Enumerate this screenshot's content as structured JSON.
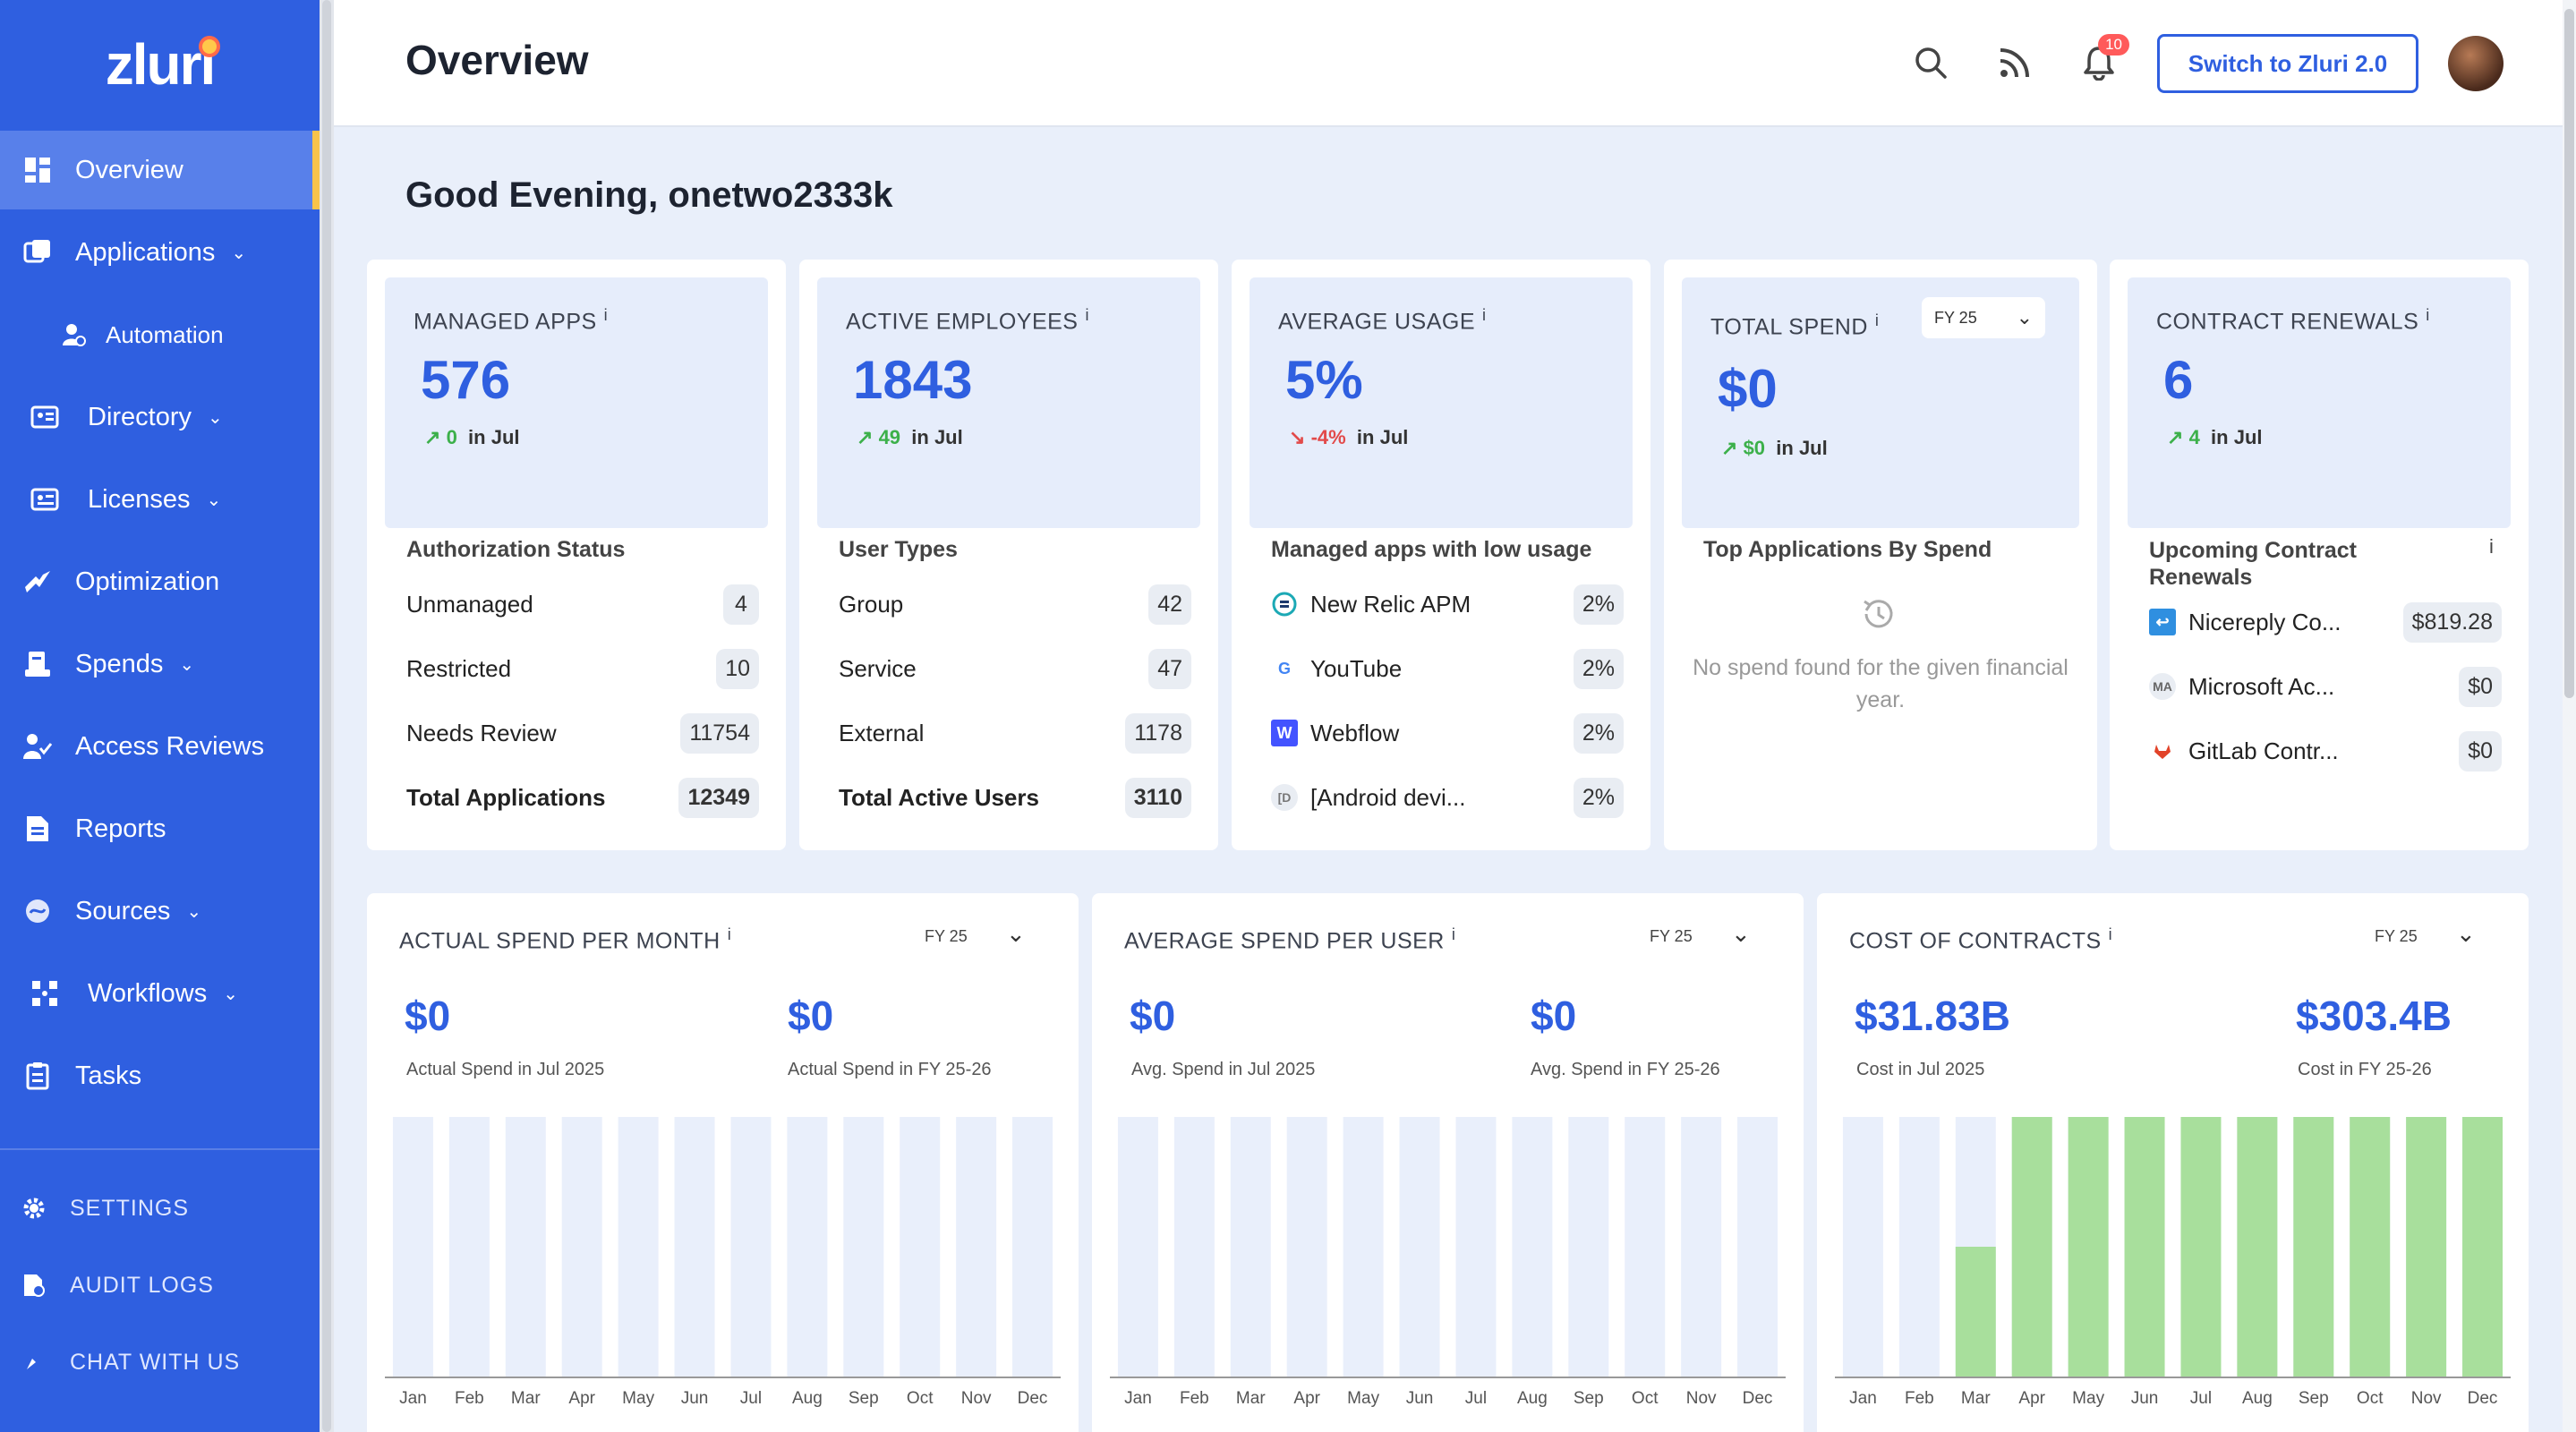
{
  "app": {
    "logo": "zluri",
    "page_title": "Overview",
    "greeting": "Good Evening, onetwo2333k"
  },
  "header": {
    "notification_count": "10",
    "switch_label": "Switch to Zluri 2.0"
  },
  "sidebar": {
    "items": [
      {
        "label": "Overview",
        "icon": "grid-icon",
        "active": true
      },
      {
        "label": "Applications",
        "icon": "applications-icon",
        "chevron": true
      },
      {
        "label": "Automation",
        "icon": "automation-icon",
        "sub": true
      },
      {
        "label": "Directory",
        "icon": "directory-icon",
        "chevron": true
      },
      {
        "label": "Licenses",
        "icon": "licenses-icon",
        "chevron": true
      },
      {
        "label": "Optimization",
        "icon": "optimization-icon"
      },
      {
        "label": "Spends",
        "icon": "spends-icon",
        "chevron": true
      },
      {
        "label": "Access Reviews",
        "icon": "access-reviews-icon"
      },
      {
        "label": "Reports",
        "icon": "reports-icon"
      },
      {
        "label": "Sources",
        "icon": "sources-icon",
        "chevron": true
      },
      {
        "label": "Workflows",
        "icon": "workflows-icon",
        "chevron": true
      },
      {
        "label": "Tasks",
        "icon": "tasks-icon"
      }
    ],
    "bottom": [
      {
        "label": "SETTINGS",
        "icon": "gear-icon"
      },
      {
        "label": "AUDIT LOGS",
        "icon": "audit-logs-icon"
      },
      {
        "label": "CHAT WITH US",
        "icon": "chat-icon"
      }
    ]
  },
  "stats": {
    "managed_apps": {
      "label": "MANAGED APPS",
      "info": "i",
      "value": "576",
      "delta": "0",
      "delta_suffix": "in Jul",
      "section": "Authorization Status",
      "rows": [
        {
          "label": "Unmanaged",
          "value": "4"
        },
        {
          "label": "Restricted",
          "value": "10"
        },
        {
          "label": "Needs Review",
          "value": "11754"
        },
        {
          "label": "Total Applications",
          "value": "12349"
        }
      ]
    },
    "active_employees": {
      "label": "ACTIVE EMPLOYEES",
      "info": "i",
      "value": "1843",
      "delta": "49",
      "delta_suffix": "in Jul",
      "section": "User Types",
      "rows": [
        {
          "label": "Group",
          "value": "42"
        },
        {
          "label": "Service",
          "value": "47"
        },
        {
          "label": "External",
          "value": "1178"
        },
        {
          "label": "Total Active Users",
          "value": "3110"
        }
      ]
    },
    "average_usage": {
      "label": "AVERAGE USAGE",
      "info": "i",
      "value": "5%",
      "delta": "-4%",
      "delta_suffix": "in Jul",
      "section": "Managed apps with low usage",
      "rows": [
        {
          "label": "New Relic APM",
          "value": "2%",
          "logo": "new-relic-logo"
        },
        {
          "label": "YouTube",
          "value": "2%",
          "logo": "google-logo"
        },
        {
          "label": "Webflow",
          "value": "2%",
          "logo": "webflow-logo"
        },
        {
          "label": "[Android devi...",
          "value": "2%",
          "logo": "android-device-logo"
        }
      ]
    },
    "total_spend": {
      "label": "TOTAL SPEND",
      "info": "i",
      "fy": "FY 25",
      "value": "$0",
      "delta": "$0",
      "delta_suffix": "in Jul",
      "section": "Top Applications By Spend",
      "empty": "No spend found for the given financial year."
    },
    "contract_renewals": {
      "label": "CONTRACT RENEWALS",
      "info": "i",
      "value": "6",
      "delta": "4",
      "delta_suffix": "in Jul",
      "section": "Upcoming Contract Renewals",
      "rows": [
        {
          "label": "Nicereply Co...",
          "value": "$819.28",
          "logo": "nicereply-logo"
        },
        {
          "label": "Microsoft Ac...",
          "value": "$0",
          "logo": "MA"
        },
        {
          "label": "GitLab Contr...",
          "value": "$0",
          "logo": "gitlab-logo"
        }
      ]
    }
  },
  "charts": {
    "actual_spend": {
      "label": "ACTUAL SPEND PER MONTH",
      "info": "i",
      "fy": "FY 25",
      "v1": "$0",
      "l1": "Actual Spend in Jul 2025",
      "v2": "$0",
      "l2": "Actual Spend in FY 25-26"
    },
    "average_spend": {
      "label": "AVERAGE SPEND PER USER",
      "info": "i",
      "fy": "FY 25",
      "v1": "$0",
      "l1": "Avg. Spend in Jul 2025",
      "v2": "$0",
      "l2": "Avg. Spend in FY 25-26"
    },
    "cost_contracts": {
      "label": "COST OF CONTRACTS",
      "info": "i",
      "fy": "FY 25",
      "v1": "$31.83B",
      "l1": "Cost in Jul 2025",
      "v2": "$303.4B",
      "l2": "Cost in FY 25-26"
    }
  },
  "chart_data": [
    {
      "type": "bar",
      "title": "ACTUAL SPEND PER MONTH",
      "categories": [
        "Jan",
        "Feb",
        "Mar",
        "Apr",
        "May",
        "Jun",
        "Jul",
        "Aug",
        "Sep",
        "Oct",
        "Nov",
        "Dec"
      ],
      "values": [
        0,
        0,
        0,
        0,
        0,
        0,
        0,
        0,
        0,
        0,
        0,
        0
      ],
      "ylim": [
        0,
        1
      ]
    },
    {
      "type": "bar",
      "title": "AVERAGE SPEND PER USER",
      "categories": [
        "Jan",
        "Feb",
        "Mar",
        "Apr",
        "May",
        "Jun",
        "Jul",
        "Aug",
        "Sep",
        "Oct",
        "Nov",
        "Dec"
      ],
      "values": [
        0,
        0,
        0,
        0,
        0,
        0,
        0,
        0,
        0,
        0,
        0,
        0
      ],
      "ylim": [
        0,
        1
      ]
    },
    {
      "type": "bar",
      "title": "COST OF CONTRACTS",
      "categories": [
        "Jan",
        "Feb",
        "Mar",
        "Apr",
        "May",
        "Jun",
        "Jul",
        "Aug",
        "Sep",
        "Oct",
        "Nov",
        "Dec"
      ],
      "values": [
        0,
        0,
        0.5,
        1,
        1,
        1,
        1,
        1,
        1,
        1,
        1,
        1
      ],
      "ylim": [
        0,
        1
      ]
    }
  ],
  "colors": {
    "accent": "#2f5fe0",
    "sidebar": "#2f5fe0",
    "bar_track": "#e9effb",
    "bar_fill": "#a8df9c",
    "up": "#3cb04a",
    "down": "#e24a4a"
  }
}
